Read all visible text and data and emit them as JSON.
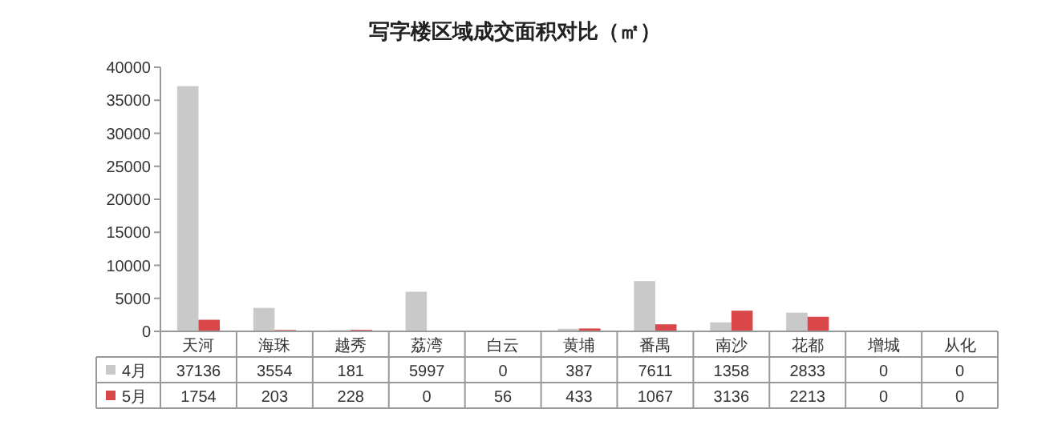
{
  "chart_data": {
    "type": "bar",
    "title": "写字楼区域成交面积对比（㎡）",
    "categories": [
      "天河",
      "海珠",
      "越秀",
      "荔湾",
      "白云",
      "黄埔",
      "番禺",
      "南沙",
      "花都",
      "增城",
      "从化"
    ],
    "series": [
      {
        "name": "4月",
        "color": "#c9c9c9",
        "values": [
          37136,
          3554,
          181,
          5997,
          0,
          387,
          7611,
          1358,
          2833,
          0,
          0
        ]
      },
      {
        "name": "5月",
        "color": "#d9474b",
        "values": [
          1754,
          203,
          228,
          0,
          56,
          433,
          1067,
          3136,
          2213,
          0,
          0
        ]
      }
    ],
    "ylim": [
      0,
      40000
    ],
    "yticks": [
      0,
      5000,
      10000,
      15000,
      20000,
      25000,
      30000,
      35000,
      40000
    ],
    "grid": false,
    "legend": "bottom left",
    "data_labels": true
  }
}
